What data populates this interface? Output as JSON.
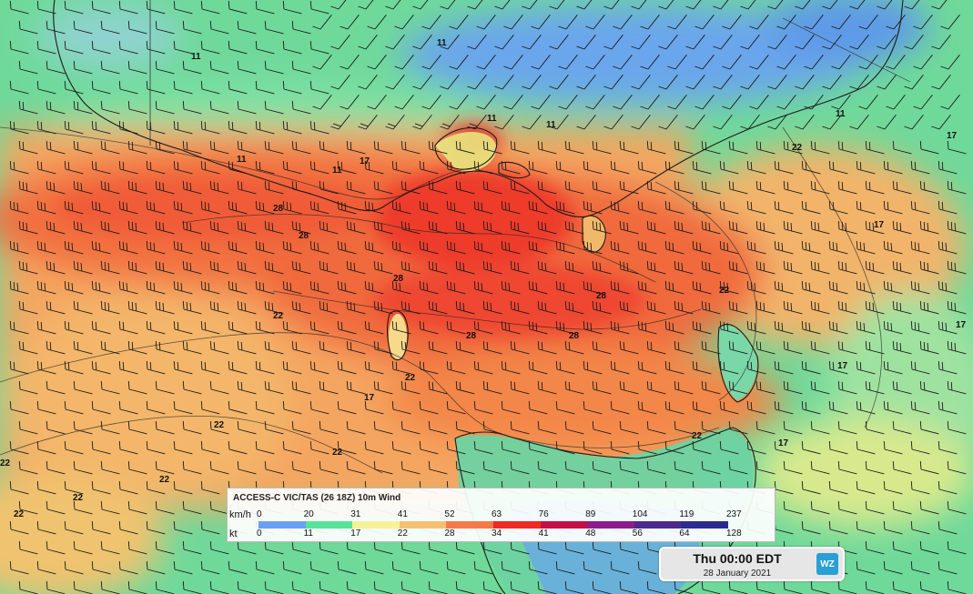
{
  "map": {
    "region": "Bass Strait / Victoria / Tasmania",
    "contour_labels": [
      {
        "text": "28",
        "lon_frac_note": "central",
        "value": 28
      },
      {
        "text": "22",
        "value": 22
      },
      {
        "text": "17",
        "value": 17
      },
      {
        "text": "11",
        "value": 11
      }
    ]
  },
  "legend": {
    "title": "ACCESS-C VIC/TAS (26 18Z) 10m Wind",
    "kmh_unit": "km/h",
    "kt_unit": "kt",
    "kmh_values": [
      "0",
      "20",
      "31",
      "41",
      "52",
      "63",
      "76",
      "89",
      "104",
      "119",
      "237"
    ],
    "kt_values": [
      "0",
      "11",
      "17",
      "22",
      "28",
      "34",
      "41",
      "48",
      "56",
      "64",
      "128"
    ],
    "colors": [
      "#6aa0f0",
      "#58e29a",
      "#f4f39a",
      "#f3c173",
      "#f47a4a",
      "#ee2a26",
      "#c41047",
      "#8a1d8a",
      "#4b2a8c",
      "#2b2b8f"
    ]
  },
  "timestamp": {
    "main": "Thu 00:00 EDT",
    "date": "28 January 2021"
  },
  "logo": {
    "text": "WZ",
    "color": "#2a9fd6"
  }
}
